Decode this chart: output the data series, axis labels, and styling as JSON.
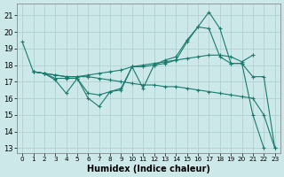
{
  "xlabel": "Humidex (Indice chaleur)",
  "bg_color": "#cce8e8",
  "line_color": "#1a7a6e",
  "grid_color": "#aacece",
  "xlim": [
    -0.5,
    23.5
  ],
  "ylim": [
    12.7,
    21.7
  ],
  "xticks": [
    0,
    1,
    2,
    3,
    4,
    5,
    6,
    7,
    8,
    9,
    10,
    11,
    12,
    13,
    14,
    15,
    16,
    17,
    18,
    19,
    20,
    21,
    22,
    23
  ],
  "yticks": [
    13,
    14,
    15,
    16,
    17,
    18,
    19,
    20,
    21
  ],
  "figsize": [
    3.2,
    2.0
  ],
  "dpi": 100,
  "s1_x": [
    0,
    1,
    2,
    3,
    4,
    5,
    6,
    7,
    8,
    9,
    10,
    11,
    12,
    13,
    14,
    15,
    16,
    17,
    18,
    19,
    20,
    21,
    22,
    23
  ],
  "s1_y": [
    19.4,
    17.6,
    17.5,
    17.1,
    16.3,
    17.2,
    16.0,
    15.5,
    16.4,
    16.5,
    17.9,
    17.9,
    18.0,
    18.1,
    18.3,
    19.4,
    20.3,
    21.2,
    20.2,
    18.1,
    18.1,
    15.0,
    13.0,
    null
  ],
  "s2_x": [
    1,
    2,
    3,
    4,
    5,
    6,
    7,
    8,
    9,
    10,
    11,
    12,
    13,
    14,
    15,
    16,
    17,
    18,
    19,
    20,
    21
  ],
  "s2_y": [
    17.6,
    17.5,
    17.4,
    17.3,
    17.3,
    17.4,
    17.5,
    17.6,
    17.7,
    17.9,
    18.0,
    18.1,
    18.2,
    18.3,
    18.4,
    18.5,
    18.6,
    18.6,
    18.5,
    18.2,
    18.6
  ],
  "s3_x": [
    1,
    2,
    3,
    4,
    5,
    6,
    7,
    8,
    9,
    10,
    11,
    12,
    13,
    14,
    15,
    16,
    17,
    18,
    19,
    20,
    21,
    22,
    23
  ],
  "s3_y": [
    17.6,
    17.5,
    17.4,
    17.3,
    17.3,
    17.3,
    17.2,
    17.1,
    17.0,
    16.9,
    16.8,
    16.8,
    16.7,
    16.7,
    16.6,
    16.5,
    16.4,
    16.3,
    16.2,
    16.1,
    16.0,
    15.0,
    13.0
  ],
  "s4_x": [
    1,
    2,
    3,
    4,
    5,
    6,
    7,
    8,
    9,
    10,
    11,
    12,
    13,
    14,
    15,
    16,
    17,
    18,
    19,
    20,
    21,
    22,
    23
  ],
  "s4_y": [
    17.6,
    17.5,
    17.2,
    17.2,
    17.2,
    16.3,
    16.2,
    16.4,
    16.6,
    17.9,
    16.6,
    18.0,
    18.3,
    18.5,
    19.5,
    20.3,
    20.2,
    18.5,
    18.1,
    18.1,
    17.3,
    17.3,
    13.0
  ]
}
